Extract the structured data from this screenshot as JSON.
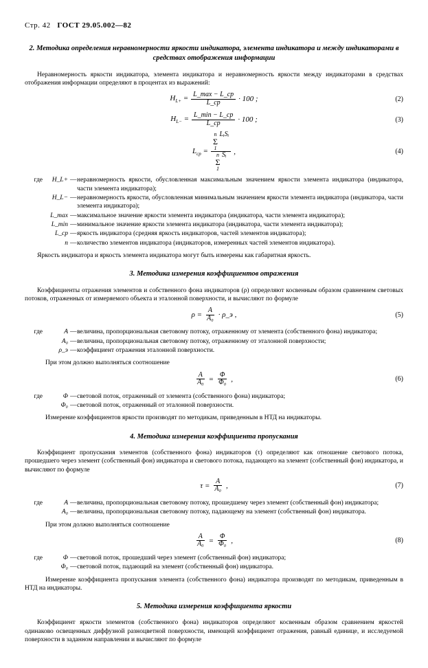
{
  "header": {
    "page": "Стр. 42",
    "doc": "ГОСТ 29.05.002—82"
  },
  "s2": {
    "title": "2. Методика определения неравномерности яркости индикатора, элемента индикатора и между индикаторами в средствах отображения информации",
    "p1": "Неравномерность яркости индикатора, элемента индикатора и неравномерность яркости между индикаторами в средствах отображения информации определяют в процентах из выражений:",
    "f2": {
      "lhs": "H",
      "lsub": "L+",
      "num": "L_max − L_ср",
      "den": "L_ср",
      "tail": " · 100 ;",
      "n": "(2)"
    },
    "f3": {
      "lhs": "H",
      "lsub": "L−",
      "num": "L_min − L_ср",
      "den": "L_ср",
      "tail": " · 100 ;",
      "n": "(3)"
    },
    "f4": {
      "lhs": "L",
      "lsub": "ср",
      "topA": "n",
      "topB": "Σ LᵢSᵢ",
      "topC": "1",
      "botA": "n",
      "botB": "Σ Sᵢ",
      "botC": "1",
      "tail": " ,",
      "n": "(4)"
    },
    "defs": [
      {
        "lead": "где",
        "sym": "H_L+",
        "txt": "неравномерность яркости, обусловленная максимальным значением яркости элемента индикатора (индикатора, части элемента индикатора);"
      },
      {
        "lead": "",
        "sym": "H_L−",
        "txt": "неравномерность яркости, обусловленная минимальным значением яркости элемента индикатора (индикатора, части элемента индикатора);"
      },
      {
        "lead": "",
        "sym": "L_max",
        "txt": "максимальное значение яркости элемента индикатора (индикатора, части элемента индикатора);"
      },
      {
        "lead": "",
        "sym": "L_min",
        "txt": "минимальное значение яркости элемента индикатора (индикатора, части элемента индикатора);"
      },
      {
        "lead": "",
        "sym": "L_ср",
        "txt": "яркость индикатора (средняя яркость индикаторов, частей элементов индикатора);"
      },
      {
        "lead": "",
        "sym": "n",
        "txt": "количество элементов индикатора (индикаторов, измеренных частей элементов индикатора)."
      }
    ],
    "p2": "Яркость индикатора и яркость элемента индикатора могут быть измерены как габаритная яркость."
  },
  "s3": {
    "title": "3. Методика измерения коэффициентов отражения",
    "p1": "Коэффициенты отражения элементов и собственного фона индикаторов (ρ) определяют косвенным образом сравнением световых потоков, отраженных от измеряемого объекта и эталонной поверхности, и вычисляют по формуле",
    "f5": {
      "lhs": "ρ =",
      "num": "A",
      "den": "A₀",
      "tail": " · ρ_э ,",
      "n": "(5)"
    },
    "defs1": [
      {
        "lead": "где",
        "sym": "A",
        "txt": "величина, пропорциональная световому потоку, отраженному от элемента (собственного фона) индикатора;"
      },
      {
        "lead": "",
        "sym": "A₀",
        "txt": "величина, пропорциональная световому потоку, отраженному от эталонной поверхности;"
      },
      {
        "lead": "",
        "sym": "ρ_э",
        "txt": "коэффициент отражения эталонной поверхности."
      }
    ],
    "p2": "При этом должно выполняться соотношение",
    "f6": {
      "numL": "A",
      "denL": "A₀",
      "mid": " = ",
      "numR": "Φ",
      "denR": "Φ₀",
      "tail": " ,",
      "n": "(6)"
    },
    "defs2": [
      {
        "lead": "где",
        "sym": "Φ",
        "txt": "световой поток, отраженный от элемента (собственного фона) индикатора;"
      },
      {
        "lead": "",
        "sym": "Φ₀",
        "txt": "световой поток, отраженный от эталонной поверхности."
      }
    ],
    "p3": "Измерение коэффициентов яркости производят по методикам, приведенным в НТД на индикаторы."
  },
  "s4": {
    "title": "4. Методика измерения коэффициента пропускания",
    "p1": "Коэффициент пропускания элементов (собственного фона) индикаторов (τ) определяют как отношение светового потока, прошедшего через элемент (собственный фон) индикатора и светового потока, падающего на элемент (собственный фон) индикатора, и вычисляют по формуле",
    "f7": {
      "lhs": "τ =",
      "num": "A",
      "den": "A₀",
      "tail": " ,",
      "n": "(7)"
    },
    "defs1": [
      {
        "lead": "где",
        "sym": "A",
        "txt": "величина, пропорциональная световому потоку, прошедшему через элемент (собственный фон) индикатора;"
      },
      {
        "lead": "",
        "sym": "A₀",
        "txt": "величина, пропорциональная световому потоку, падающему на элемент (собственный фон) индикатора."
      }
    ],
    "p2": "При этом должно выполняться соотношение",
    "f8": {
      "numL": "A",
      "denL": "A₀",
      "mid": " = ",
      "numR": "Φ",
      "denR": "Φ₀",
      "tail": " ,",
      "n": "(8)"
    },
    "defs2": [
      {
        "lead": "где",
        "sym": "Φ",
        "txt": "световой поток, прошедший через элемент (собственный фон) индикатора;"
      },
      {
        "lead": "",
        "sym": "Φ₀",
        "txt": "световой поток, падающий на элемент (собственный фон) индикатора."
      }
    ],
    "p3": "Измерение коэффициента пропускания элемента (собственного фона) индикатора производят по методикам, приведенным в НТД на индикаторы."
  },
  "s5": {
    "title": "5. Методика измерения коэффициента яркости",
    "p1": "Коэффициент яркости элементов (собственного фона) индикаторов определяют косвенным образом сравнением яркостей одинаково освещенных диффузной разноцветной поверхности, имеющей коэффициент отражения, равный единице, и исследуемой поверхности в заданном направлении и вычисляют по формуле"
  }
}
